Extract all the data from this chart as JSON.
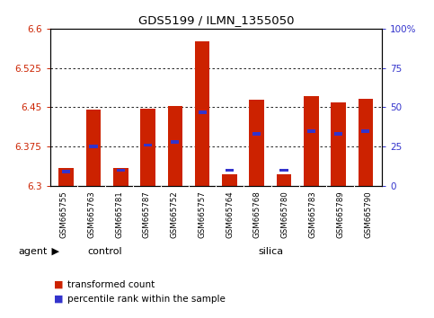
{
  "title": "GDS5199 / ILMN_1355050",
  "samples": [
    "GSM665755",
    "GSM665763",
    "GSM665781",
    "GSM665787",
    "GSM665752",
    "GSM665757",
    "GSM665764",
    "GSM665768",
    "GSM665780",
    "GSM665783",
    "GSM665789",
    "GSM665790"
  ],
  "bar_values": [
    6.335,
    6.445,
    6.335,
    6.447,
    6.452,
    6.575,
    6.322,
    6.465,
    6.322,
    6.472,
    6.46,
    6.467
  ],
  "percentile_values": [
    9,
    25,
    10,
    26,
    28,
    47,
    10,
    33,
    10,
    35,
    33,
    35
  ],
  "ymin": 6.3,
  "ymax": 6.6,
  "y2min": 0,
  "y2max": 100,
  "yticks": [
    6.3,
    6.375,
    6.45,
    6.525,
    6.6
  ],
  "y2ticks": [
    0,
    25,
    50,
    75,
    100
  ],
  "bar_color": "#cc2200",
  "percentile_color": "#3333cc",
  "n_control": 4,
  "n_silica": 8,
  "control_label": "control",
  "silica_label": "silica",
  "agent_label": "agent",
  "legend1": "transformed count",
  "legend2": "percentile rank within the sample",
  "bar_width": 0.55,
  "label_bg": "#cccccc",
  "group_bg": "#77ee77"
}
